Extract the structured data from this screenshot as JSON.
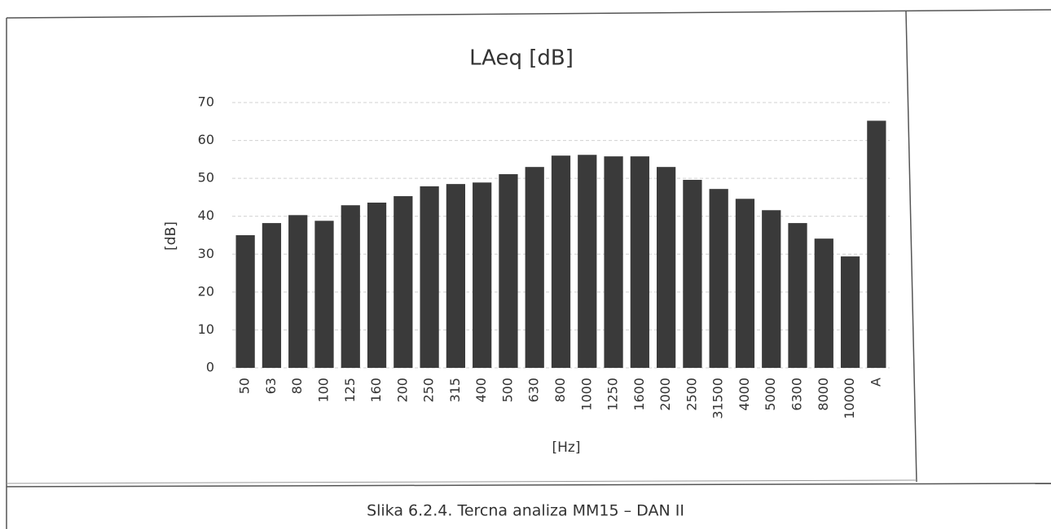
{
  "chart_data": {
    "type": "bar",
    "title": "LAeq [dB]",
    "y_label": "[dB]",
    "x_label": "[Hz]",
    "caption": "Slika 6.2.4. Tercna analiza MM15 – DAN II",
    "categories": [
      "50",
      "63",
      "80",
      "100",
      "125",
      "160",
      "200",
      "250",
      "315",
      "400",
      "500",
      "630",
      "800",
      "1000",
      "1250",
      "1600",
      "2000",
      "2500",
      "31500",
      "4000",
      "5000",
      "6300",
      "8000",
      "10000",
      "A"
    ],
    "values": [
      35.0,
      38.2,
      40.3,
      38.8,
      42.9,
      43.6,
      45.3,
      47.9,
      48.5,
      48.9,
      51.1,
      53.0,
      56.0,
      56.2,
      55.8,
      55.8,
      53.0,
      49.6,
      47.2,
      44.6,
      41.6,
      38.2,
      34.1,
      29.4,
      65.2
    ],
    "color": "#3a3a3a",
    "ylim": [
      0,
      70
    ],
    "yticks": [
      0,
      10,
      20,
      30,
      40,
      50,
      60,
      70
    ],
    "grid": true
  }
}
